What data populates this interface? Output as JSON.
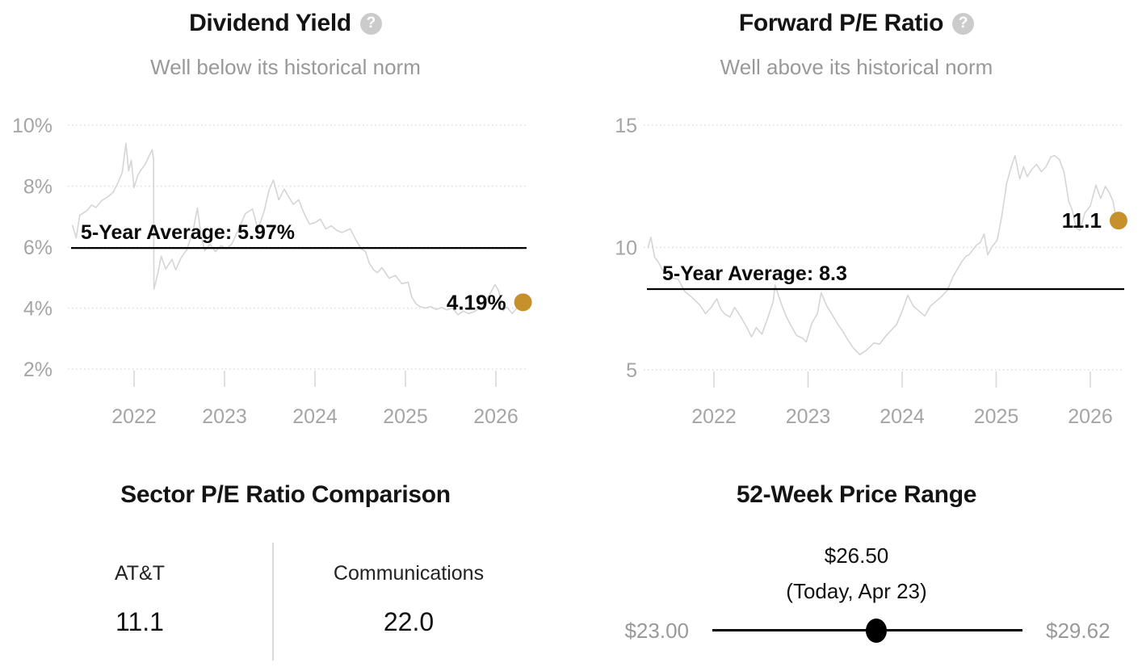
{
  "colors": {
    "accent_dot": "#c6902c",
    "series_line": "#d5d5d5",
    "average_line": "#000000",
    "gridline": "#dddddd",
    "tick": "#d6d6d6",
    "axis_label": "#a5a5a5",
    "muted_text": "#999999"
  },
  "panels": {
    "dividend_yield": {
      "title": "Dividend Yield",
      "help_glyph": "?",
      "subtitle": "Well below its historical norm"
    },
    "forward_pe": {
      "title": "Forward P/E Ratio",
      "help_glyph": "?",
      "subtitle": "Well above its historical norm"
    },
    "sector_pe": {
      "title": "Sector P/E Ratio Comparison",
      "columns": [
        {
          "label": "AT&T",
          "value": "11.1"
        },
        {
          "label": "Communications",
          "value": "22.0"
        }
      ]
    },
    "price_range": {
      "title": "52-Week Price Range",
      "current_price": "$26.50",
      "current_label": "(Today, Apr 23)",
      "low": "$23.00",
      "high": "$29.62",
      "low_value": 23.0,
      "high_value": 29.62,
      "current_value": 26.5
    }
  },
  "chart_data": [
    {
      "type": "line",
      "title": "Dividend Yield",
      "subtitle": "Well below its historical norm",
      "xlabel": "",
      "ylabel": "Dividend yield (%)",
      "grid": "dotted-horizontal",
      "legend_position": "none",
      "x_range": [
        2021.3,
        2026.38
      ],
      "ylim": [
        1.5,
        10.3
      ],
      "x_ticks": [
        2022,
        2023,
        2024,
        2025,
        2026
      ],
      "x_tick_labels": [
        "2022",
        "2023",
        "2024",
        "2025",
        "2026"
      ],
      "y_ticks": [
        {
          "label": "10%",
          "value": 10
        },
        {
          "label": "8%",
          "value": 8
        },
        {
          "label": "6%",
          "value": 6
        },
        {
          "label": "4%",
          "value": 4
        },
        {
          "label": "2%",
          "value": 2
        }
      ],
      "y_axis_top_value": 10,
      "y_axis_bottom_value": 2,
      "average": {
        "label": "5-Year Average: 5.97%",
        "value": 5.97
      },
      "current": {
        "label": "4.19%",
        "value": 4.19,
        "x": 2026.3
      },
      "x": [
        2021.32,
        2021.36,
        2021.4,
        2021.44,
        2021.48,
        2021.53,
        2021.58,
        2021.64,
        2021.71,
        2021.77,
        2021.82,
        2021.87,
        2021.91,
        2021.94,
        2021.97,
        2022.0,
        2022.04,
        2022.08,
        2022.12,
        2022.16,
        2022.2,
        2022.215,
        2022.22,
        2022.26,
        2022.3,
        2022.35,
        2022.42,
        2022.46,
        2022.52,
        2022.58,
        2022.65,
        2022.7,
        2022.74,
        2022.78,
        2022.84,
        2022.9,
        2022.96,
        2023.02,
        2023.08,
        2023.15,
        2023.23,
        2023.31,
        2023.37,
        2023.44,
        2023.49,
        2023.54,
        2023.6,
        2023.66,
        2023.7,
        2023.76,
        2023.82,
        2023.88,
        2023.94,
        2024.0,
        2024.06,
        2024.12,
        2024.18,
        2024.24,
        2024.3,
        2024.39,
        2024.45,
        2024.51,
        2024.56,
        2024.6,
        2024.65,
        2024.69,
        2024.74,
        2024.82,
        2024.89,
        2024.96,
        2025.03,
        2025.07,
        2025.12,
        2025.16,
        2025.22,
        2025.28,
        2025.34,
        2025.4,
        2025.46,
        2025.52,
        2025.58,
        2025.64,
        2025.7,
        2025.76,
        2025.82,
        2025.87,
        2025.93,
        2025.99,
        2026.03,
        2026.08,
        2026.12,
        2026.18,
        2026.23,
        2026.3
      ],
      "values": [
        6.71,
        6.3,
        7.05,
        7.12,
        7.2,
        7.38,
        7.3,
        7.52,
        7.65,
        7.8,
        8.1,
        8.45,
        9.4,
        8.5,
        8.85,
        7.95,
        8.35,
        8.55,
        8.7,
        8.95,
        9.2,
        8.9,
        4.62,
        5.1,
        5.7,
        5.28,
        5.6,
        5.25,
        5.65,
        5.9,
        6.5,
        7.28,
        6.4,
        5.88,
        6.1,
        5.85,
        6.05,
        5.95,
        6.1,
        6.55,
        7.1,
        7.25,
        6.58,
        7.2,
        7.85,
        8.2,
        7.55,
        7.9,
        7.7,
        7.4,
        7.55,
        7.1,
        6.75,
        6.8,
        6.92,
        6.6,
        6.7,
        6.55,
        6.48,
        6.6,
        6.25,
        5.95,
        5.85,
        5.47,
        5.25,
        5.16,
        5.33,
        4.98,
        5.07,
        4.8,
        4.85,
        4.36,
        4.13,
        4.05,
        4.0,
        4.05,
        3.95,
        4.02,
        3.94,
        4.0,
        3.78,
        3.9,
        3.82,
        3.88,
        4.0,
        4.18,
        4.44,
        4.77,
        4.57,
        3.91,
        4.04,
        3.82,
        4.0,
        4.19
      ]
    },
    {
      "type": "line",
      "title": "Forward P/E Ratio",
      "subtitle": "Well above its historical norm",
      "xlabel": "",
      "ylabel": "Forward P/E ratio",
      "grid": "dotted-horizontal",
      "legend_position": "none",
      "x_range": [
        2021.28,
        2026.38
      ],
      "ylim": [
        4.5,
        15.3
      ],
      "x_ticks": [
        2022,
        2023,
        2024,
        2025,
        2026
      ],
      "x_tick_labels": [
        "2022",
        "2023",
        "2024",
        "2025",
        "2026"
      ],
      "y_ticks": [
        {
          "label": "15",
          "value": 15
        },
        {
          "label": "10",
          "value": 10
        },
        {
          "label": "5",
          "value": 5
        }
      ],
      "y_axis_top_value": 15,
      "y_axis_bottom_value": 5,
      "average": {
        "label": "5-Year Average: 8.3",
        "value": 8.3
      },
      "current": {
        "label": "11.1",
        "value": 11.1,
        "x": 2026.3
      },
      "x": [
        2021.3,
        2021.33,
        2021.37,
        2021.41,
        2021.45,
        2021.5,
        2021.56,
        2021.62,
        2021.69,
        2021.77,
        2021.85,
        2021.91,
        2021.97,
        2022.03,
        2022.07,
        2022.11,
        2022.17,
        2022.22,
        2022.28,
        2022.34,
        2022.4,
        2022.45,
        2022.51,
        2022.57,
        2022.63,
        2022.65,
        2022.71,
        2022.77,
        2022.82,
        2022.88,
        2022.94,
        2022.98,
        2023.04,
        2023.1,
        2023.14,
        2023.2,
        2023.25,
        2023.31,
        2023.37,
        2023.42,
        2023.48,
        2023.55,
        2023.62,
        2023.7,
        2023.76,
        2023.82,
        2023.88,
        2023.94,
        2024.0,
        2024.06,
        2024.12,
        2024.18,
        2024.24,
        2024.3,
        2024.36,
        2024.42,
        2024.48,
        2024.54,
        2024.6,
        2024.63,
        2024.68,
        2024.71,
        2024.75,
        2024.79,
        2024.83,
        2024.87,
        2024.91,
        2024.95,
        2025.01,
        2025.06,
        2025.11,
        2025.16,
        2025.2,
        2025.25,
        2025.29,
        2025.33,
        2025.38,
        2025.43,
        2025.48,
        2025.53,
        2025.58,
        2025.62,
        2025.67,
        2025.72,
        2025.77,
        2025.81,
        2025.85,
        2025.89,
        2025.94,
        2026.0,
        2026.06,
        2026.11,
        2026.16,
        2026.2,
        2026.24,
        2026.28
      ],
      "values": [
        10.0,
        10.42,
        9.6,
        9.4,
        9.1,
        8.9,
        8.75,
        8.7,
        8.2,
        7.95,
        7.65,
        7.3,
        7.55,
        7.9,
        7.5,
        7.3,
        7.16,
        7.55,
        7.2,
        6.8,
        6.35,
        6.73,
        6.46,
        7.1,
        7.8,
        8.47,
        7.76,
        7.17,
        6.8,
        6.4,
        6.3,
        6.14,
        6.9,
        7.3,
        8.15,
        7.6,
        7.3,
        6.9,
        6.57,
        6.24,
        5.9,
        5.62,
        5.8,
        6.1,
        6.05,
        6.35,
        6.6,
        6.85,
        7.4,
        8.05,
        7.6,
        7.4,
        7.2,
        7.6,
        7.8,
        8.0,
        8.25,
        8.8,
        9.2,
        9.4,
        9.65,
        9.7,
        9.9,
        10.1,
        10.2,
        10.55,
        9.7,
        10.0,
        10.3,
        11.3,
        12.6,
        13.3,
        13.75,
        12.8,
        13.3,
        12.9,
        13.2,
        13.4,
        13.1,
        13.3,
        13.7,
        13.76,
        13.6,
        13.1,
        11.9,
        11.5,
        10.8,
        10.7,
        11.4,
        11.7,
        12.55,
        12.0,
        12.5,
        12.25,
        11.9,
        11.1
      ]
    }
  ]
}
